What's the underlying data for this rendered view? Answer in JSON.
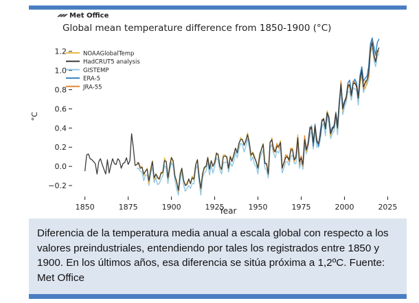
{
  "caption": "Diferencia de la temperatura media anual a escala global con respecto a los valores preindustriales, entendiendo por tales los registrados entre 1850 y 1900. En los últimos años, esa diferencia se sitúa próxima a 1,2ºC. Fuente: Met Office",
  "chart_data": {
    "type": "line",
    "brand": "Met Office",
    "title": "Global mean temperature difference from 1850-1900 (°C)",
    "xlabel": "Year",
    "ylabel": "°C",
    "xlim": [
      1843,
      2028
    ],
    "ylim": [
      -0.3,
      1.32
    ],
    "xticks": [
      1850,
      1875,
      1900,
      1925,
      1950,
      1975,
      2000,
      2025
    ],
    "yticks": [
      -0.2,
      0.0,
      0.2,
      0.4,
      0.6,
      0.8,
      1.0,
      1.2
    ],
    "ytick_labels": [
      "−0.2",
      "0.0",
      "0.2",
      "0.4",
      "0.6",
      "0.8",
      "1.0",
      "1.2"
    ],
    "legend_position": "top-left",
    "grid": false,
    "x": [
      1850,
      1851,
      1852,
      1853,
      1854,
      1855,
      1856,
      1857,
      1858,
      1859,
      1860,
      1861,
      1862,
      1863,
      1864,
      1865,
      1866,
      1867,
      1868,
      1869,
      1870,
      1871,
      1872,
      1873,
      1874,
      1875,
      1876,
      1877,
      1878,
      1879,
      1880,
      1881,
      1882,
      1883,
      1884,
      1885,
      1886,
      1887,
      1888,
      1889,
      1890,
      1891,
      1892,
      1893,
      1894,
      1895,
      1896,
      1897,
      1898,
      1899,
      1900,
      1901,
      1902,
      1903,
      1904,
      1905,
      1906,
      1907,
      1908,
      1909,
      1910,
      1911,
      1912,
      1913,
      1914,
      1915,
      1916,
      1917,
      1918,
      1919,
      1920,
      1921,
      1922,
      1923,
      1924,
      1925,
      1926,
      1927,
      1928,
      1929,
      1930,
      1931,
      1932,
      1933,
      1934,
      1935,
      1936,
      1937,
      1938,
      1939,
      1940,
      1941,
      1942,
      1943,
      1944,
      1945,
      1946,
      1947,
      1948,
      1949,
      1950,
      1951,
      1952,
      1953,
      1954,
      1955,
      1956,
      1957,
      1958,
      1959,
      1960,
      1961,
      1962,
      1963,
      1964,
      1965,
      1966,
      1967,
      1968,
      1969,
      1970,
      1971,
      1972,
      1973,
      1974,
      1975,
      1976,
      1977,
      1978,
      1979,
      1980,
      1981,
      1982,
      1983,
      1984,
      1985,
      1986,
      1987,
      1988,
      1989,
      1990,
      1991,
      1992,
      1993,
      1994,
      1995,
      1996,
      1997,
      1998,
      1999,
      2000,
      2001,
      2002,
      2003,
      2004,
      2005,
      2006,
      2007,
      2008,
      2009,
      2010,
      2011,
      2012,
      2013,
      2014,
      2015,
      2016,
      2017,
      2018,
      2019,
      2020
    ],
    "series": [
      {
        "name": "NOAAGlobalTemp",
        "color": "#e8b84a",
        "start": 1880,
        "offsets": [
          0.03,
          -0.02,
          0.02,
          0.01,
          -0.02,
          0.0,
          0.01,
          -0.03,
          0.02,
          0.01,
          -0.02,
          0.0,
          0.02,
          -0.01,
          0.01,
          -0.02,
          0.03,
          0.0,
          -0.01,
          0.02,
          0.01,
          -0.02,
          0.0,
          0.01,
          -0.01,
          0.02,
          0.0,
          -0.02,
          0.01,
          0.02,
          -0.01,
          0.0,
          0.02,
          -0.02,
          0.01,
          0.0,
          0.02,
          -0.01,
          0.01,
          -0.02,
          0.0,
          0.01,
          0.03,
          -0.01,
          0.0,
          0.02,
          -0.02,
          0.01,
          0.0,
          -0.01,
          0.02,
          0.01,
          -0.02,
          0.0,
          0.01,
          0.02,
          -0.01,
          0.0,
          0.01,
          -0.02,
          0.02,
          0.0,
          0.01,
          -0.01,
          0.02,
          0.0,
          -0.02,
          0.01,
          0.02,
          -0.01,
          0.0,
          0.03,
          -0.01,
          0.01,
          0.02,
          -0.02,
          0.0,
          0.01,
          -0.01,
          0.02,
          0.0,
          0.01,
          -0.02,
          0.02,
          0.0,
          -0.01,
          0.01,
          0.02,
          -0.01,
          0.0,
          0.02,
          -0.02,
          0.01,
          0.03,
          0.0,
          -0.01,
          0.02,
          0.01,
          -0.02,
          0.0,
          0.01,
          0.02,
          -0.01,
          0.01,
          0.0,
          -0.02,
          0.02,
          0.01,
          -0.01,
          0.0,
          0.02,
          0.01,
          -0.02,
          0.01,
          0.0,
          0.02,
          -0.01,
          0.01,
          0.0,
          -0.02,
          0.02,
          0.01,
          -0.03,
          0.0,
          0.02,
          0.01,
          -0.01,
          0.02,
          0.0,
          -0.04,
          0.01,
          0.0,
          -0.06,
          -0.02,
          0.0,
          -0.03,
          -0.05
        ]
      },
      {
        "name": "HadCRUT5 analysis",
        "color": "#3a3a3a",
        "start": 1850,
        "offsets": null
      },
      {
        "name": "GISTEMP",
        "color": "#8fc8e3",
        "start": 1880,
        "offsets": [
          -0.04,
          -0.06,
          -0.03,
          -0.05,
          -0.07,
          -0.04,
          -0.06,
          -0.05,
          -0.03,
          -0.06,
          -0.05,
          -0.04,
          -0.07,
          -0.05,
          -0.06,
          -0.04,
          -0.05,
          -0.07,
          -0.06,
          -0.04,
          -0.05,
          -0.06,
          -0.04,
          -0.07,
          -0.05,
          -0.06,
          -0.04,
          -0.05,
          -0.06,
          -0.04,
          -0.07,
          -0.05,
          -0.06,
          -0.05,
          -0.04,
          -0.06,
          -0.05,
          -0.07,
          -0.04,
          -0.06,
          -0.05,
          -0.04,
          -0.06,
          -0.05,
          -0.07,
          -0.04,
          -0.05,
          -0.06,
          -0.04,
          -0.05,
          -0.06,
          -0.07,
          -0.05,
          -0.04,
          -0.06,
          -0.05,
          -0.07,
          -0.04,
          -0.05,
          -0.06,
          -0.04,
          -0.05,
          -0.07,
          -0.06,
          -0.04,
          -0.05,
          -0.06,
          -0.04,
          -0.07,
          -0.05,
          -0.06,
          -0.04,
          -0.05,
          -0.06,
          -0.05,
          -0.07,
          -0.04,
          -0.06,
          -0.05,
          -0.04,
          -0.06,
          -0.05,
          -0.07,
          -0.04,
          -0.05,
          -0.06,
          -0.04,
          -0.05,
          -0.06,
          -0.07,
          -0.05,
          -0.04,
          -0.06,
          -0.05,
          -0.07,
          -0.04,
          -0.05,
          -0.06,
          -0.04,
          -0.05,
          -0.06,
          -0.04,
          -0.07,
          -0.05,
          -0.06,
          -0.04,
          -0.05,
          -0.06,
          -0.05,
          -0.07,
          -0.04,
          -0.06,
          -0.05,
          -0.04,
          -0.06,
          -0.05,
          -0.07,
          -0.04,
          -0.05,
          -0.06,
          -0.04,
          -0.05,
          -0.06,
          -0.07,
          -0.05,
          -0.04,
          -0.06,
          -0.05,
          -0.07,
          -0.04,
          -0.05,
          -0.06,
          -0.04,
          -0.05,
          -0.06,
          -0.04,
          -0.05,
          -0.06,
          -0.05,
          -0.04,
          -0.06
        ]
      },
      {
        "name": "ERA-5",
        "color": "#2f7fc1",
        "start": 1979,
        "offsets": [
          -0.02,
          0.03,
          0.0,
          -0.04,
          0.02,
          0.01,
          -0.03,
          0.04,
          0.01,
          -0.02,
          0.03,
          0.0,
          -0.01,
          0.02,
          0.03,
          -0.02,
          0.01,
          0.04,
          0.02,
          -0.01,
          0.03,
          0.02,
          0.0,
          0.03,
          0.05,
          0.02,
          0.01,
          0.04,
          0.03,
          0.02,
          0.05,
          0.04,
          0.06,
          0.05,
          0.04,
          0.07,
          0.06,
          0.05,
          0.08,
          0.07,
          0.1,
          0.09
        ]
      },
      {
        "name": "JRA-55",
        "color": "#e58a32",
        "start": 1958,
        "offsets": [
          0.02,
          -0.03,
          0.01,
          0.03,
          -0.02,
          0.0,
          0.02,
          -0.01,
          0.03,
          0.0,
          -0.02,
          0.02,
          0.01,
          -0.01,
          0.03,
          0.0,
          -0.03,
          0.02,
          -0.02,
          0.04,
          0.01,
          -0.03,
          0.02,
          0.0,
          -0.04,
          0.01,
          0.03,
          -0.02,
          0.0,
          0.02,
          -0.01,
          0.03,
          -0.02,
          0.01,
          0.0,
          0.02,
          -0.03,
          0.01,
          0.02,
          -0.01,
          0.03,
          0.0,
          0.01,
          -0.02,
          0.02,
          0.0,
          -0.01,
          0.03,
          0.01,
          -0.02,
          0.02,
          0.04,
          0.01,
          -0.03,
          0.02,
          0.0,
          -0.04,
          0.01,
          0.03,
          -0.02,
          0.0,
          0.02,
          -0.05
        ]
      }
    ],
    "hadcrut5": [
      -0.05,
      0.12,
      0.13,
      0.08,
      0.07,
      0.05,
      0.03,
      -0.08,
      0.05,
      0.08,
      0.02,
      -0.03,
      -0.08,
      0.07,
      -0.07,
      0.01,
      0.08,
      0.03,
      0.02,
      0.08,
      0.06,
      -0.02,
      0.03,
      0.04,
      0.09,
      0.02,
      0.06,
      0.34,
      0.19,
      0.01,
      0.02,
      0.04,
      -0.02,
      -0.01,
      -0.08,
      -0.05,
      -0.03,
      -0.15,
      -0.04,
      0.05,
      -0.12,
      -0.08,
      -0.12,
      -0.13,
      -0.07,
      -0.06,
      0.06,
      0.05,
      -0.12,
      0.0,
      0.09,
      0.06,
      -0.1,
      -0.16,
      -0.25,
      -0.09,
      -0.02,
      -0.14,
      -0.2,
      -0.19,
      -0.13,
      -0.18,
      -0.12,
      -0.13,
      0.01,
      0.07,
      -0.11,
      -0.23,
      -0.08,
      -0.01,
      0.0,
      0.09,
      -0.03,
      0.06,
      0.0,
      0.04,
      0.14,
      0.12,
      0.0,
      -0.03,
      0.1,
      0.11,
      0.1,
      -0.02,
      0.1,
      0.05,
      0.12,
      0.19,
      0.14,
      0.24,
      0.28,
      0.28,
      0.22,
      0.27,
      0.33,
      0.25,
      0.12,
      0.14,
      0.09,
      0.05,
      -0.02,
      0.11,
      0.18,
      0.23,
      0.03,
      0.03,
      -0.08,
      0.25,
      0.28,
      0.18,
      0.15,
      0.21,
      0.21,
      0.25,
      -0.02,
      0.04,
      0.09,
      0.1,
      0.07,
      0.17,
      0.17,
      0.07,
      0.09,
      0.3,
      0.05,
      0.09,
      0.02,
      0.28,
      0.17,
      0.25,
      0.38,
      0.41,
      0.25,
      0.42,
      0.26,
      0.24,
      0.32,
      0.47,
      0.5,
      0.39,
      0.56,
      0.51,
      0.34,
      0.38,
      0.43,
      0.55,
      0.4,
      0.65,
      0.86,
      0.6,
      0.66,
      0.72,
      0.84,
      0.85,
      0.74,
      0.86,
      0.87,
      0.84,
      0.71,
      0.9,
      1.0,
      0.83,
      0.87,
      0.9,
      0.97,
      1.22,
      1.29,
      1.17,
      1.09,
      1.19,
      1.24
    ]
  }
}
